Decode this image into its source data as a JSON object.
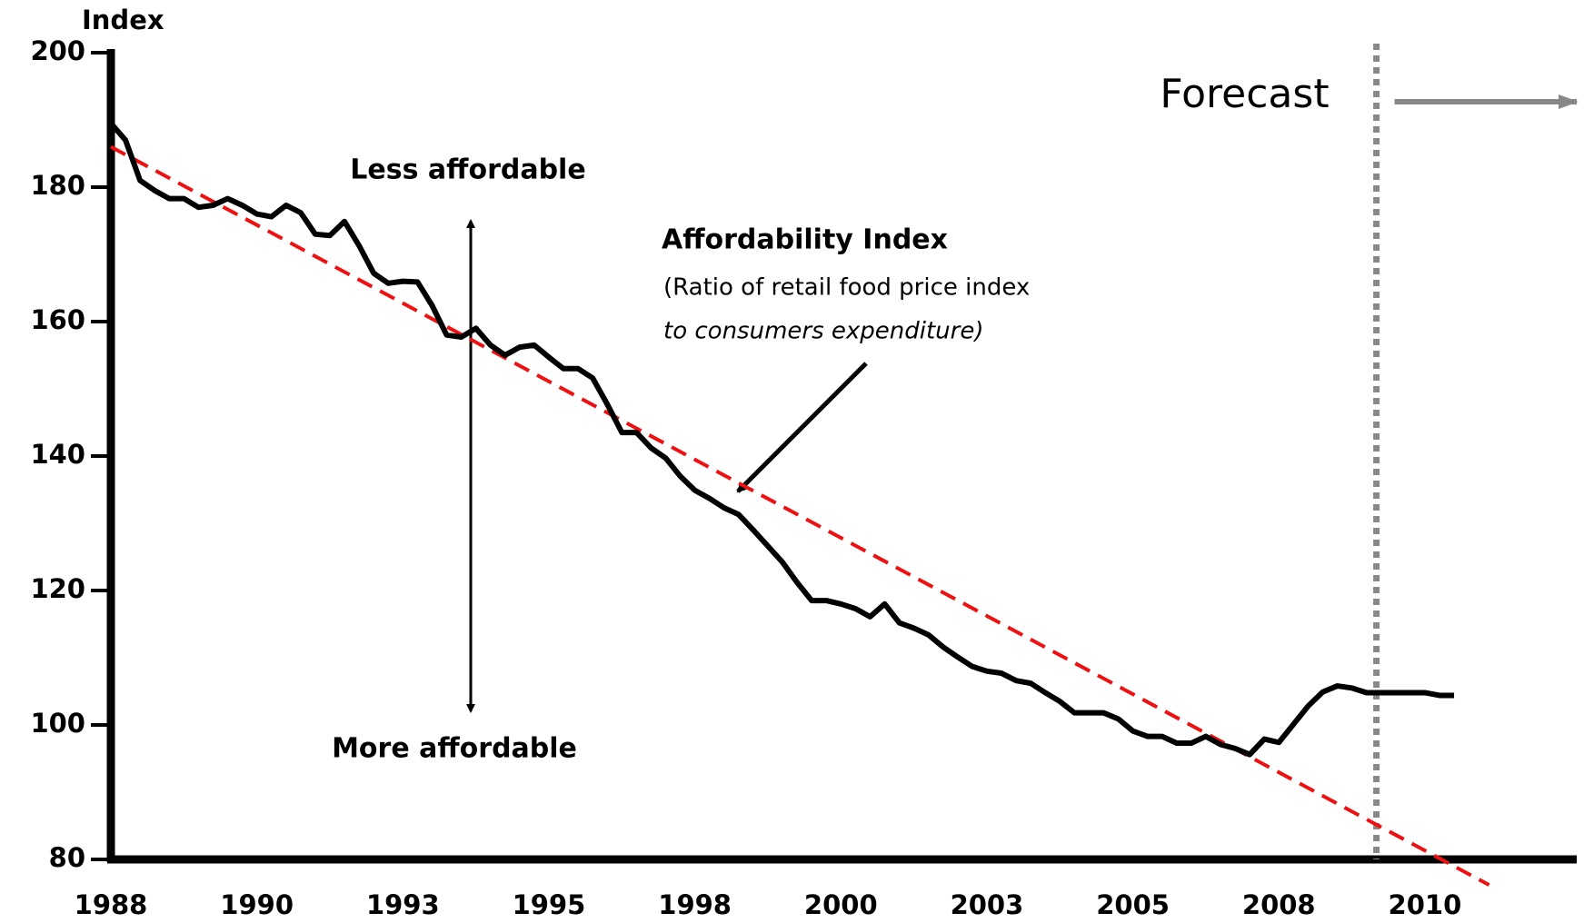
{
  "chart_data": {
    "type": "line",
    "y_label": "Index",
    "x": [
      1988,
      1988.25,
      1988.5,
      1988.75,
      1989,
      1989.25,
      1989.5,
      1989.75,
      1990,
      1990.25,
      1990.5,
      1990.75,
      1991,
      1991.25,
      1991.5,
      1991.75,
      1992,
      1992.25,
      1992.5,
      1992.75,
      1993,
      1993.25,
      1993.5,
      1993.75,
      1994,
      1994.25,
      1994.5,
      1994.75,
      1995,
      1995.25,
      1995.5,
      1995.75,
      1996,
      1996.25,
      1996.5,
      1996.75,
      1997,
      1997.25,
      1997.5,
      1997.75,
      1998,
      1998.25,
      1998.5,
      1998.75,
      1999,
      1999.25,
      1999.5,
      1999.75,
      2000,
      2000.25,
      2000.5,
      2000.75,
      2001,
      2001.25,
      2001.5,
      2001.75,
      2002,
      2002.25,
      2002.5,
      2002.75,
      2003,
      2003.25,
      2003.5,
      2003.75,
      2004,
      2004.25,
      2004.5,
      2004.75,
      2005,
      2005.25,
      2005.5,
      2005.75,
      2006,
      2006.25,
      2006.5,
      2006.75,
      2007,
      2007.25,
      2007.5,
      2007.75,
      2008,
      2008.25,
      2008.5,
      2008.75,
      2009,
      2009.25,
      2009.5,
      2009.75,
      2010,
      2010.25,
      2010.5,
      2010.75,
      2011
    ],
    "series": [
      {
        "color": "#000000",
        "values": [
          189.5,
          187,
          181,
          179.5,
          178.3,
          178.3,
          177,
          177.3,
          178.3,
          177.3,
          176,
          175.6,
          177.3,
          176.2,
          173,
          172.8,
          174.9,
          171.3,
          167.2,
          165.7,
          166,
          165.9,
          162.4,
          158,
          157.7,
          159,
          156.5,
          155,
          156.2,
          156.5,
          154.7,
          153,
          153,
          151.6,
          147.7,
          143.5,
          143.5,
          141.2,
          139.7,
          137,
          134.9,
          133.7,
          132.3,
          131.3,
          129,
          126.6,
          124.2,
          121.2,
          118.5,
          118.5,
          118,
          117.3,
          116.1,
          118,
          115.2,
          114.4,
          113.4,
          111.6,
          110.1,
          108.7,
          108,
          107.7,
          106.6,
          106.2,
          104.8,
          103.5,
          101.8,
          101.8,
          101.8,
          100.9,
          99.1,
          98.3,
          98.3,
          97.3,
          97.3,
          98.3,
          97.1,
          96.5,
          95.6,
          97.9,
          97.4,
          100.1,
          102.8,
          104.9,
          105.8,
          105.5,
          104.8,
          104.8,
          104.8,
          104.8,
          104.8,
          104.4,
          104.4
        ]
      }
    ],
    "trend": {
      "color": "#ee1111",
      "x": [
        1988,
        2011.6
      ],
      "values": [
        186,
        76.2
      ]
    },
    "forecast": {
      "x": 2009.67,
      "color": "#888888",
      "label": "Forecast"
    },
    "annotations": {
      "less": "Less  affordable",
      "more": "More affordable",
      "index_title": "Affordability Index",
      "index_line1": "(Ratio of retail food price index",
      "index_line2": "to consumers    expenditure)"
    },
    "xlim": [
      1988,
      2013.1
    ],
    "ylim": [
      80,
      200
    ],
    "xticks": [
      1988,
      {
        "value": 1990.5,
        "label": "1990"
      },
      {
        "value": 1993,
        "label": "1993"
      },
      {
        "value": 1995.5,
        "label": "1995"
      },
      1998,
      {
        "value": 2000.5,
        "label": "2000"
      },
      2003,
      {
        "value": 2005.5,
        "label": "2005"
      },
      2008,
      {
        "value": 2010.5,
        "label": "2010"
      }
    ],
    "yticks": [
      80,
      100,
      120,
      140,
      160,
      180,
      200
    ],
    "grid": false
  }
}
